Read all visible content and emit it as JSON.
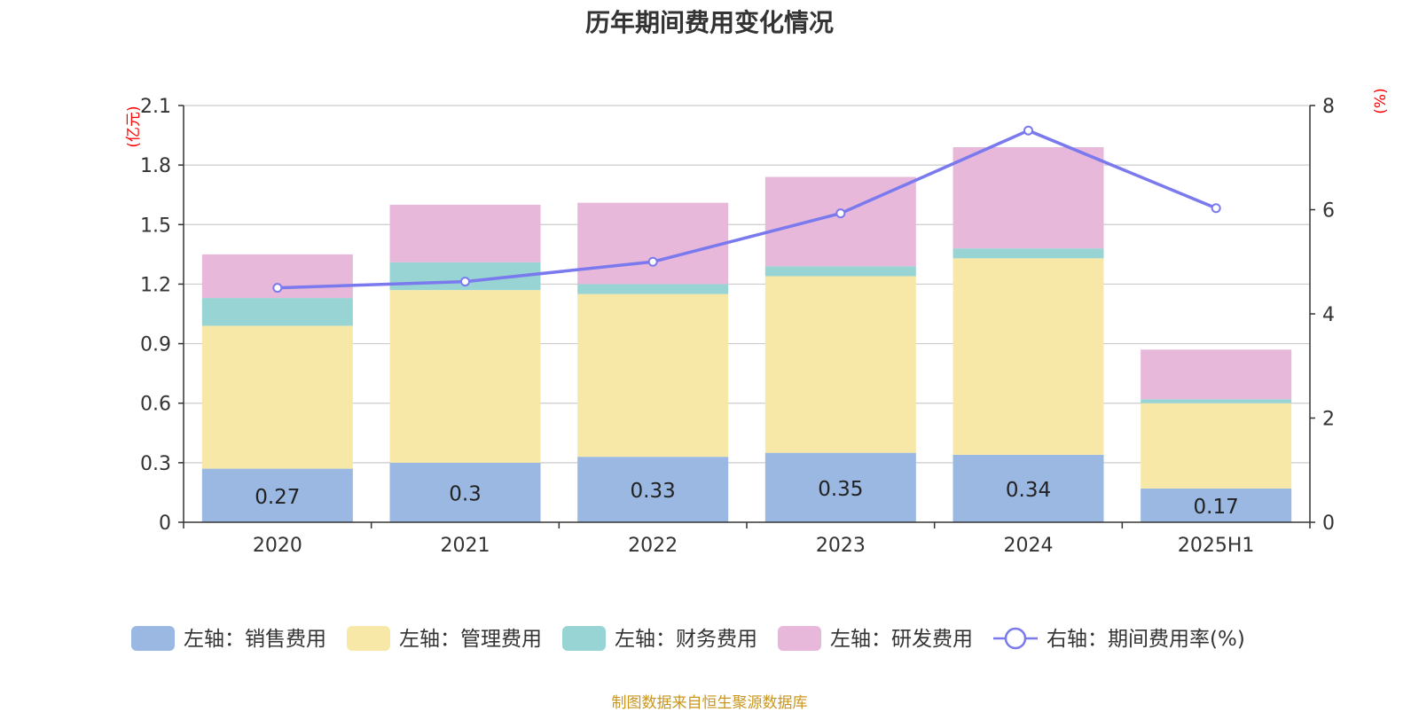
{
  "title": "历年期间费用变化情况",
  "source": "制图数据来自恒生聚源数据库",
  "colors": {
    "sales": "#9ab8e2",
    "admin": "#f8e8a8",
    "finance": "#98d4d4",
    "rd": "#e8b8da",
    "rate": "#7a7aee",
    "unit": "#ff0000",
    "grid": "#cccccc"
  },
  "chart_data": {
    "type": "bar",
    "stacked": true,
    "categories": [
      "2020",
      "2021",
      "2022",
      "2023",
      "2024",
      "2025H1"
    ],
    "y_left": {
      "unit": "(亿元)",
      "ylim": [
        0,
        2.1
      ],
      "ticks": [
        "0",
        "0.3",
        "0.6",
        "0.9",
        "1.2",
        "1.5",
        "1.8",
        "2.1"
      ]
    },
    "y_right": {
      "unit": "(%)",
      "ylim": [
        0,
        8
      ],
      "ticks": [
        "0",
        "2",
        "4",
        "6",
        "8"
      ]
    },
    "series": [
      {
        "name": "左轴：销售费用",
        "type": "bar",
        "axis": "left",
        "values": [
          0.27,
          0.3,
          0.33,
          0.35,
          0.34,
          0.17
        ],
        "labels": [
          "0.27",
          "0.3",
          "0.33",
          "0.35",
          "0.34",
          "0.17"
        ]
      },
      {
        "name": "左轴：管理费用",
        "type": "bar",
        "axis": "left",
        "values": [
          0.72,
          0.87,
          0.82,
          0.89,
          0.99,
          0.43
        ]
      },
      {
        "name": "左轴：财务费用",
        "type": "bar",
        "axis": "left",
        "values": [
          0.14,
          0.14,
          0.05,
          0.05,
          0.05,
          0.02
        ]
      },
      {
        "name": "左轴：研发费用",
        "type": "bar",
        "axis": "left",
        "values": [
          0.22,
          0.29,
          0.41,
          0.45,
          0.51,
          0.25
        ]
      },
      {
        "name": "右轴：期间费用率(%)",
        "type": "line",
        "axis": "right",
        "values": [
          4.5,
          4.62,
          5.0,
          5.93,
          7.52,
          6.03
        ]
      }
    ],
    "grid": true,
    "legend_position": "bottom"
  }
}
